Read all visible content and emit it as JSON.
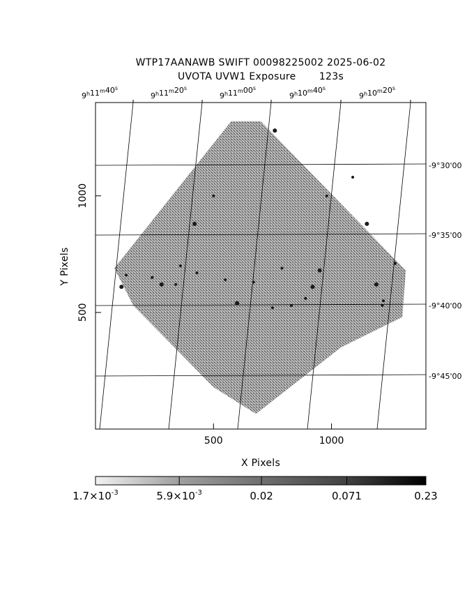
{
  "title": {
    "line1": "WTP17AANAWB SWIFT 00098225002 2025-06-02",
    "line2": "UVOTA UVW1 Exposure       123s"
  },
  "chart_data": {
    "type": "heatmap",
    "xlabel": "X Pixels",
    "ylabel": "Y Pixels",
    "x_ticks": [
      "500",
      "1000"
    ],
    "x_tick_values": [
      500,
      1000
    ],
    "y_ticks": [
      "500",
      "1000"
    ],
    "y_tick_values": [
      500,
      1000
    ],
    "xlim": [
      0,
      1400
    ],
    "ylim": [
      0,
      1400
    ],
    "grid": true,
    "ra_ticks": [
      {
        "h": "9",
        "m": "11",
        "s": "40",
        "value": "9h11m40s"
      },
      {
        "h": "9",
        "m": "11",
        "s": "20",
        "value": "9h11m20s"
      },
      {
        "h": "9",
        "m": "11",
        "s": "00",
        "value": "9h11m00s"
      },
      {
        "h": "9",
        "m": "10",
        "s": "40",
        "value": "9h10m40s"
      },
      {
        "h": "9",
        "m": "10",
        "s": "20",
        "value": "9h10m20s"
      }
    ],
    "dec_ticks": [
      "-9°30'00",
      "-9°35'00",
      "-9°40'00",
      "-9°45'00"
    ],
    "colorbar": {
      "scale": "log",
      "tick_labels": [
        {
          "mant": "1.7×10",
          "exp": "-3"
        },
        {
          "mant": "5.9×10",
          "exp": "-3"
        },
        {
          "mant": "0.02",
          "exp": ""
        },
        {
          "mant": "0.071",
          "exp": ""
        },
        {
          "mant": "0.23",
          "exp": ""
        }
      ],
      "tick_values": [
        0.0017,
        0.0059,
        0.02,
        0.071,
        0.23
      ],
      "colormap": "grayscale (light to dark)"
    },
    "footprint_vertices": [
      [
        80,
        690
      ],
      [
        575,
        1320
      ],
      [
        700,
        1320
      ],
      [
        1315,
        680
      ],
      [
        1300,
        480
      ],
      [
        1040,
        350
      ],
      [
        680,
        65
      ],
      [
        500,
        180
      ],
      [
        160,
        530
      ]
    ],
    "sources": [
      [
        280,
        620
      ],
      [
        340,
        620
      ],
      [
        670,
        630
      ],
      [
        600,
        540
      ],
      [
        750,
        520
      ],
      [
        790,
        690
      ],
      [
        950,
        680
      ],
      [
        430,
        670
      ],
      [
        550,
        640
      ],
      [
        920,
        610
      ],
      [
        1215,
        530
      ],
      [
        1220,
        550
      ],
      [
        1190,
        620
      ],
      [
        830,
        530
      ],
      [
        890,
        560
      ],
      [
        760,
        1280
      ],
      [
        1090,
        1080
      ],
      [
        980,
        1000
      ],
      [
        1150,
        880
      ],
      [
        1270,
        710
      ],
      [
        500,
        1000
      ],
      [
        420,
        880
      ],
      [
        360,
        700
      ],
      [
        130,
        660
      ],
      [
        110,
        610
      ],
      [
        240,
        650
      ]
    ]
  }
}
